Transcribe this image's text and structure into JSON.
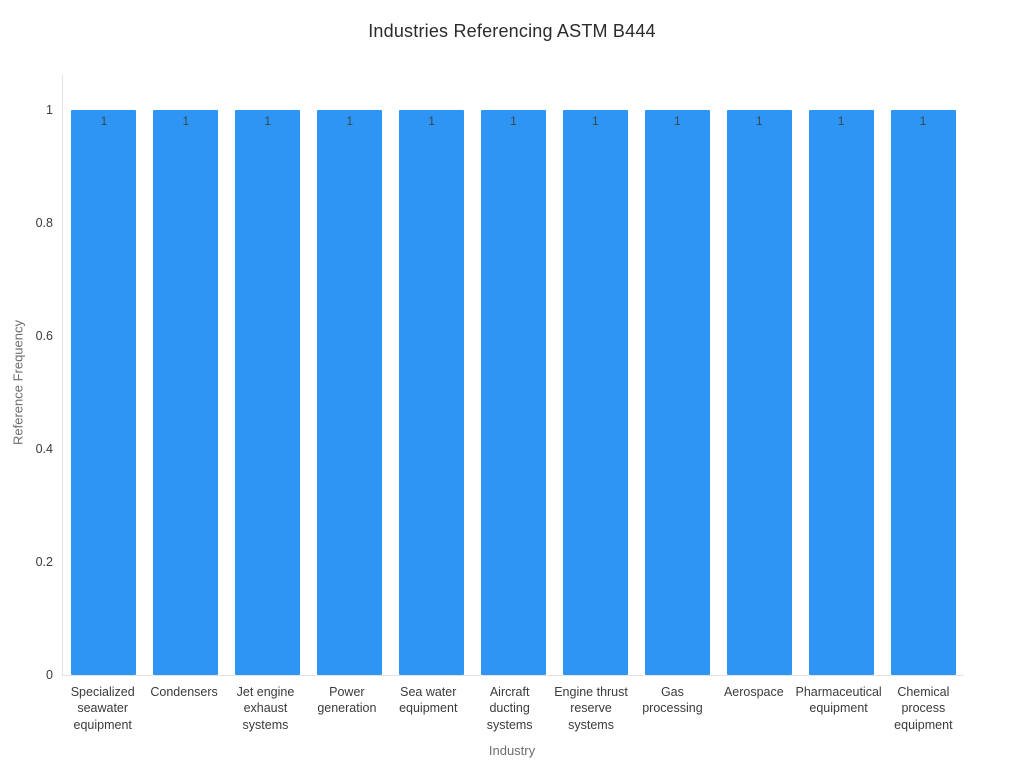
{
  "chart_data": {
    "type": "bar",
    "title": "Industries Referencing ASTM B444",
    "xlabel": "Industry",
    "ylabel": "Reference Frequency",
    "categories": [
      "Specialized seawater equipment",
      "Condensers",
      "Jet engine exhaust systems",
      "Power generation",
      "Sea water equipment",
      "Aircraft ducting systems",
      "Engine thrust reserve systems",
      "Gas processing",
      "Aerospace",
      "Pharmaceutical equipment",
      "Chemical process equipment"
    ],
    "values": [
      1,
      1,
      1,
      1,
      1,
      1,
      1,
      1,
      1,
      1,
      1
    ],
    "bar_value_labels": [
      "1",
      "1",
      "1",
      "1",
      "1",
      "1",
      "1",
      "1",
      "1",
      "1",
      "1"
    ],
    "yticks": [
      0,
      0.2,
      0.4,
      0.6,
      0.8,
      1
    ],
    "ylim": [
      0,
      1.062
    ],
    "bar_color": "#2E95F5",
    "bar_label_color": "#37474f",
    "grid": false,
    "legend_position": "none"
  }
}
